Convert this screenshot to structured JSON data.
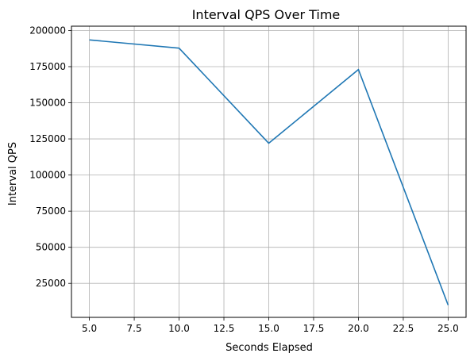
{
  "chart_data": {
    "type": "line",
    "title": "Interval QPS Over Time",
    "xlabel": "Seconds Elapsed",
    "ylabel": "Interval QPS",
    "xlim": [
      4.0,
      26.0
    ],
    "ylim": [
      1500,
      203000
    ],
    "xticks": [
      5.0,
      7.5,
      10.0,
      12.5,
      15.0,
      17.5,
      20.0,
      22.5,
      25.0
    ],
    "xtick_labels": [
      "5.0",
      "7.5",
      "10.0",
      "12.5",
      "15.0",
      "17.5",
      "20.0",
      "22.5",
      "25.0"
    ],
    "yticks": [
      25000,
      50000,
      75000,
      100000,
      125000,
      150000,
      175000,
      200000
    ],
    "ytick_labels": [
      "25000",
      "50000",
      "75000",
      "100000",
      "125000",
      "150000",
      "175000",
      "200000"
    ],
    "grid": true,
    "series": [
      {
        "x": [
          5,
          10,
          15,
          20,
          25
        ],
        "y": [
          193500,
          187800,
          122000,
          173000,
          10000
        ],
        "color": "#1f77b4"
      }
    ]
  }
}
